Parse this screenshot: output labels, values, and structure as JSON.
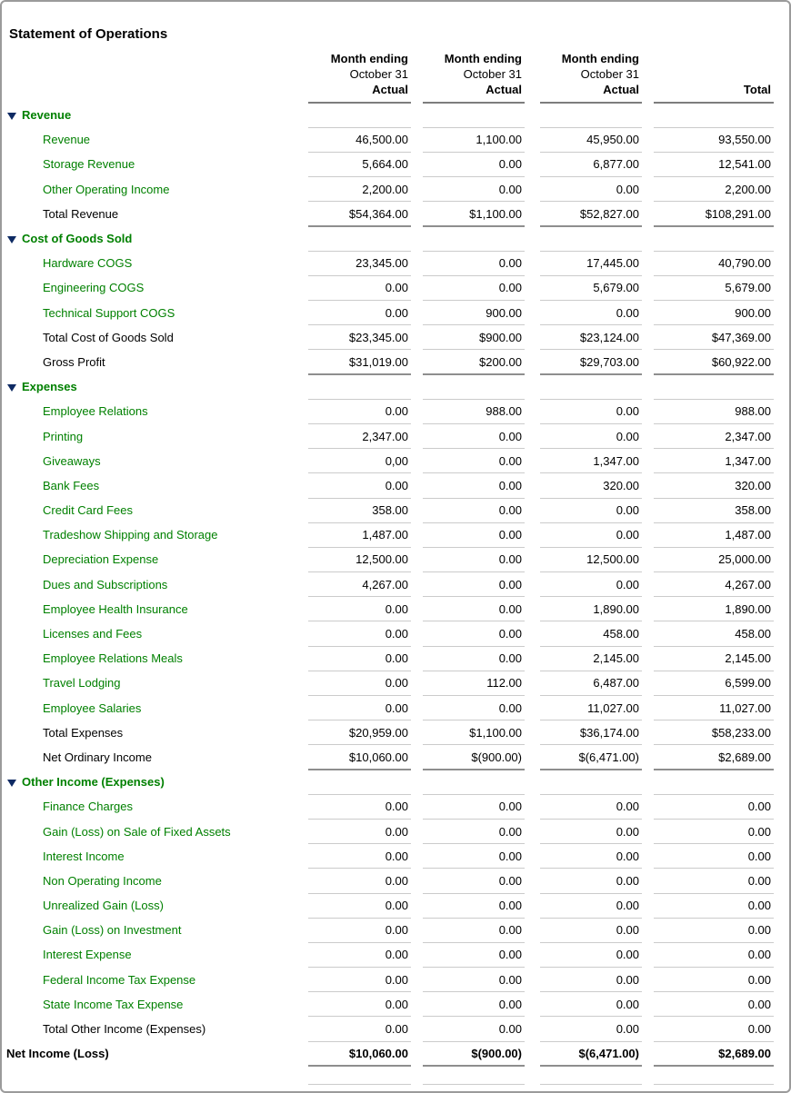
{
  "report": {
    "title": "Statement of Operations",
    "columns": [
      {
        "line1": "Month ending",
        "line2": "October 31",
        "line3": "Actual"
      },
      {
        "line1": "Month ending",
        "line2": "October 31",
        "line3": "Actual"
      },
      {
        "line1": "Month ending",
        "line2": "October 31",
        "line3": "Actual"
      },
      {
        "line1": "",
        "line2": "",
        "line3": "Total"
      }
    ],
    "sections": [
      {
        "name": "Revenue",
        "rows": [
          {
            "type": "item",
            "label": "Revenue",
            "values": [
              "46,500.00",
              "1,100.00",
              "45,950.00",
              "93,550.00"
            ]
          },
          {
            "type": "item",
            "label": "Storage Revenue",
            "values": [
              "5,664.00",
              "0.00",
              "6,877.00",
              "12,541.00"
            ]
          },
          {
            "type": "item",
            "label": "Other Operating Income",
            "values": [
              "2,200.00",
              "0.00",
              "0.00",
              "2,200.00"
            ]
          },
          {
            "type": "total",
            "label": "Total Revenue",
            "values": [
              "$54,364.00",
              "$1,100.00",
              "$52,827.00",
              "$108,291.00"
            ],
            "end_of_block": true
          }
        ]
      },
      {
        "name": "Cost of Goods Sold",
        "rows": [
          {
            "type": "item",
            "label": "Hardware COGS",
            "values": [
              "23,345.00",
              "0.00",
              "17,445.00",
              "40,790.00"
            ]
          },
          {
            "type": "item",
            "label": "Engineering COGS",
            "values": [
              "0.00",
              "0.00",
              "5,679.00",
              "5,679.00"
            ]
          },
          {
            "type": "item",
            "label": "Technical Support COGS",
            "values": [
              "0.00",
              "900.00",
              "0.00",
              "900.00"
            ]
          },
          {
            "type": "total",
            "label": "Total Cost of Goods Sold",
            "values": [
              "$23,345.00",
              "$900.00",
              "$23,124.00",
              "$47,369.00"
            ]
          },
          {
            "type": "total",
            "label": "Gross Profit",
            "values": [
              "$31,019.00",
              "$200.00",
              "$29,703.00",
              "$60,922.00"
            ],
            "end_of_block": true
          }
        ]
      },
      {
        "name": "Expenses",
        "rows": [
          {
            "type": "item",
            "label": "Employee Relations",
            "values": [
              "0.00",
              "988.00",
              "0.00",
              "988.00"
            ]
          },
          {
            "type": "item",
            "label": "Printing",
            "values": [
              "2,347.00",
              "0.00",
              "0.00",
              "2,347.00"
            ]
          },
          {
            "type": "item",
            "label": "Giveaways",
            "values": [
              "0,00",
              "0.00",
              "1,347.00",
              "1,347.00"
            ]
          },
          {
            "type": "item",
            "label": "Bank Fees",
            "values": [
              "0.00",
              "0.00",
              "320.00",
              "320.00"
            ]
          },
          {
            "type": "item",
            "label": "Credit Card Fees",
            "values": [
              "358.00",
              "0.00",
              "0.00",
              "358.00"
            ]
          },
          {
            "type": "item",
            "label": "Tradeshow Shipping and Storage",
            "values": [
              "1,487.00",
              "0.00",
              "0.00",
              "1,487.00"
            ]
          },
          {
            "type": "item",
            "label": "Depreciation Expense",
            "values": [
              "12,500.00",
              "0.00",
              "12,500.00",
              "25,000.00"
            ]
          },
          {
            "type": "item",
            "label": "Dues and Subscriptions",
            "values": [
              "4,267.00",
              "0.00",
              "0.00",
              "4,267.00"
            ]
          },
          {
            "type": "item",
            "label": "Employee Health Insurance",
            "values": [
              "0.00",
              "0.00",
              "1,890.00",
              "1,890.00"
            ]
          },
          {
            "type": "item",
            "label": "Licenses and Fees",
            "values": [
              "0.00",
              "0.00",
              "458.00",
              "458.00"
            ]
          },
          {
            "type": "item",
            "label": "Employee Relations Meals",
            "values": [
              "0.00",
              "0.00",
              "2,145.00",
              "2,145.00"
            ]
          },
          {
            "type": "item",
            "label": "Travel Lodging",
            "values": [
              "0.00",
              "112.00",
              "6,487.00",
              "6,599.00"
            ]
          },
          {
            "type": "item",
            "label": "Employee Salaries",
            "values": [
              "0.00",
              "0.00",
              "11,027.00",
              "11,027.00"
            ]
          },
          {
            "type": "total",
            "label": "Total Expenses",
            "values": [
              "$20,959.00",
              "$1,100.00",
              "$36,174.00",
              "$58,233.00"
            ]
          },
          {
            "type": "total",
            "label": "Net Ordinary Income",
            "values": [
              "$10,060.00",
              "$(900.00)",
              "$(6,471.00)",
              "$2,689.00"
            ],
            "end_of_block": true
          }
        ]
      },
      {
        "name": "Other Income (Expenses)",
        "rows": [
          {
            "type": "item",
            "label": "Finance Charges",
            "values": [
              "0.00",
              "0.00",
              "0.00",
              "0.00"
            ]
          },
          {
            "type": "item",
            "label": "Gain (Loss) on Sale of Fixed Assets",
            "values": [
              "0.00",
              "0.00",
              "0.00",
              "0.00"
            ]
          },
          {
            "type": "item",
            "label": "Interest Income",
            "values": [
              "0.00",
              "0.00",
              "0.00",
              "0.00"
            ]
          },
          {
            "type": "item",
            "label": "Non Operating Income",
            "values": [
              "0.00",
              "0.00",
              "0.00",
              "0.00"
            ]
          },
          {
            "type": "item",
            "label": "Unrealized Gain (Loss)",
            "values": [
              "0.00",
              "0.00",
              "0.00",
              "0.00"
            ]
          },
          {
            "type": "item",
            "label": "Gain (Loss) on Investment",
            "values": [
              "0.00",
              "0.00",
              "0.00",
              "0.00"
            ]
          },
          {
            "type": "item",
            "label": "Interest Expense",
            "values": [
              "0.00",
              "0.00",
              "0.00",
              "0.00"
            ]
          },
          {
            "type": "item",
            "label": "Federal Income Tax Expense",
            "values": [
              "0.00",
              "0.00",
              "0.00",
              "0.00"
            ]
          },
          {
            "type": "item",
            "label": "State Income Tax Expense",
            "values": [
              "0.00",
              "0.00",
              "0.00",
              "0.00"
            ]
          },
          {
            "type": "total",
            "label": "Total Other Income (Expenses)",
            "values": [
              "0.00",
              "0.00",
              "0.00",
              "0.00"
            ]
          }
        ]
      }
    ],
    "net_income_row": {
      "label": "Net Income (Loss)",
      "values": [
        "$10,060.00",
        "$(900.00)",
        "$(6,471.00)",
        "$2,689.00"
      ]
    },
    "colors": {
      "account_link_green": "#008000",
      "collapse_triangle_navy": "#0e2a63",
      "rule_light": "#cbcbcb",
      "rule_dark": "#8e8e8e",
      "frame_border": "#9b9b9b"
    }
  }
}
